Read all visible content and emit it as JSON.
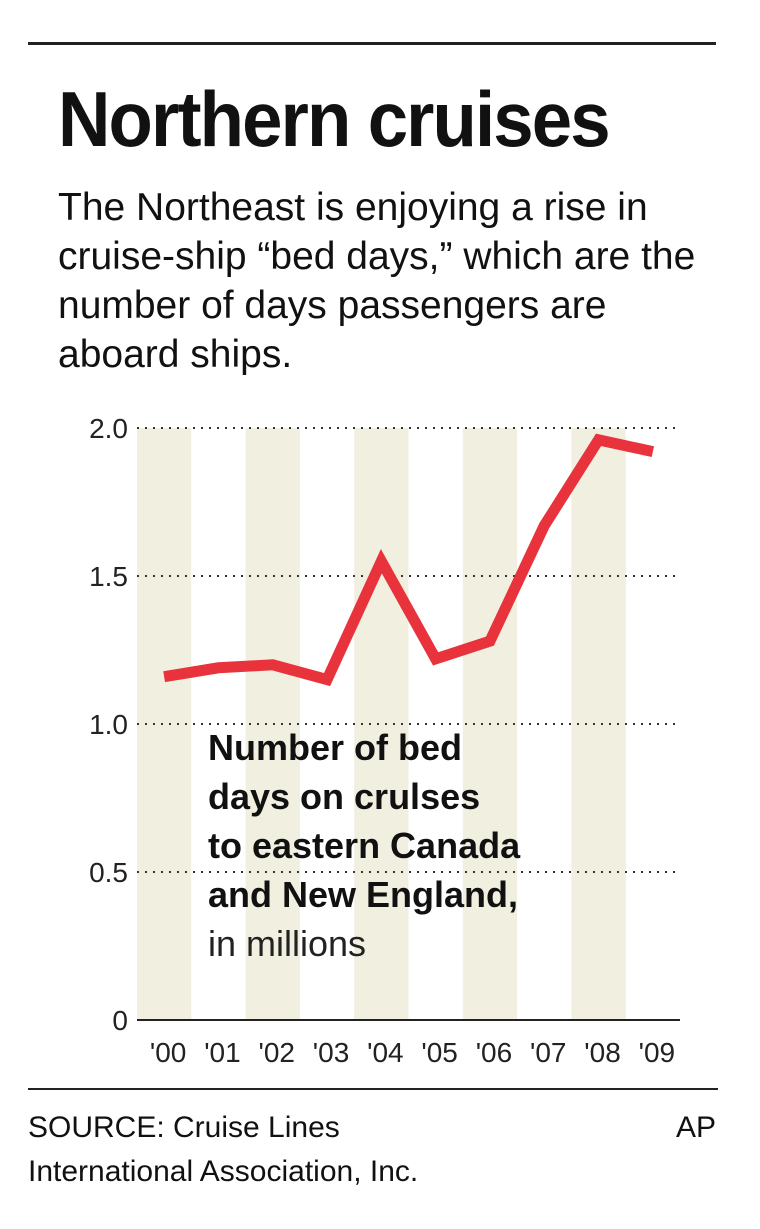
{
  "header": {
    "title": "Northern cruises",
    "subtitle": "The Northeast is enjoying a rise in cruise-ship “bed days,” which are the number of days passengers are aboard ships."
  },
  "chart_data": {
    "type": "line",
    "categories": [
      "'00",
      "'01",
      "'02",
      "'03",
      "'04",
      "'05",
      "'06",
      "'07",
      "'08",
      "'09"
    ],
    "series": [
      {
        "values": [
          1.16,
          1.19,
          1.2,
          1.15,
          1.55,
          1.22,
          1.28,
          1.67,
          1.96,
          1.92
        ]
      }
    ],
    "y_ticks": [
      "0",
      "0.5",
      "1.0",
      "1.5",
      "2.0"
    ],
    "y_tick_values": [
      0,
      0.5,
      1.0,
      1.5,
      2.0
    ],
    "ylim": [
      0,
      2.0
    ],
    "grid": "dotted horizontal",
    "line_color": "#e8323c",
    "band_color": "#f1efdf",
    "annotation": {
      "bold_lines": [
        "Number of bed",
        "days on crulses",
        "to eastern Canada",
        "and New England,"
      ],
      "normal_line": "in millions"
    }
  },
  "footer": {
    "source_line1": "SOURCE: Cruise Lines",
    "source_line2": "International Association, Inc.",
    "credit": "AP"
  }
}
